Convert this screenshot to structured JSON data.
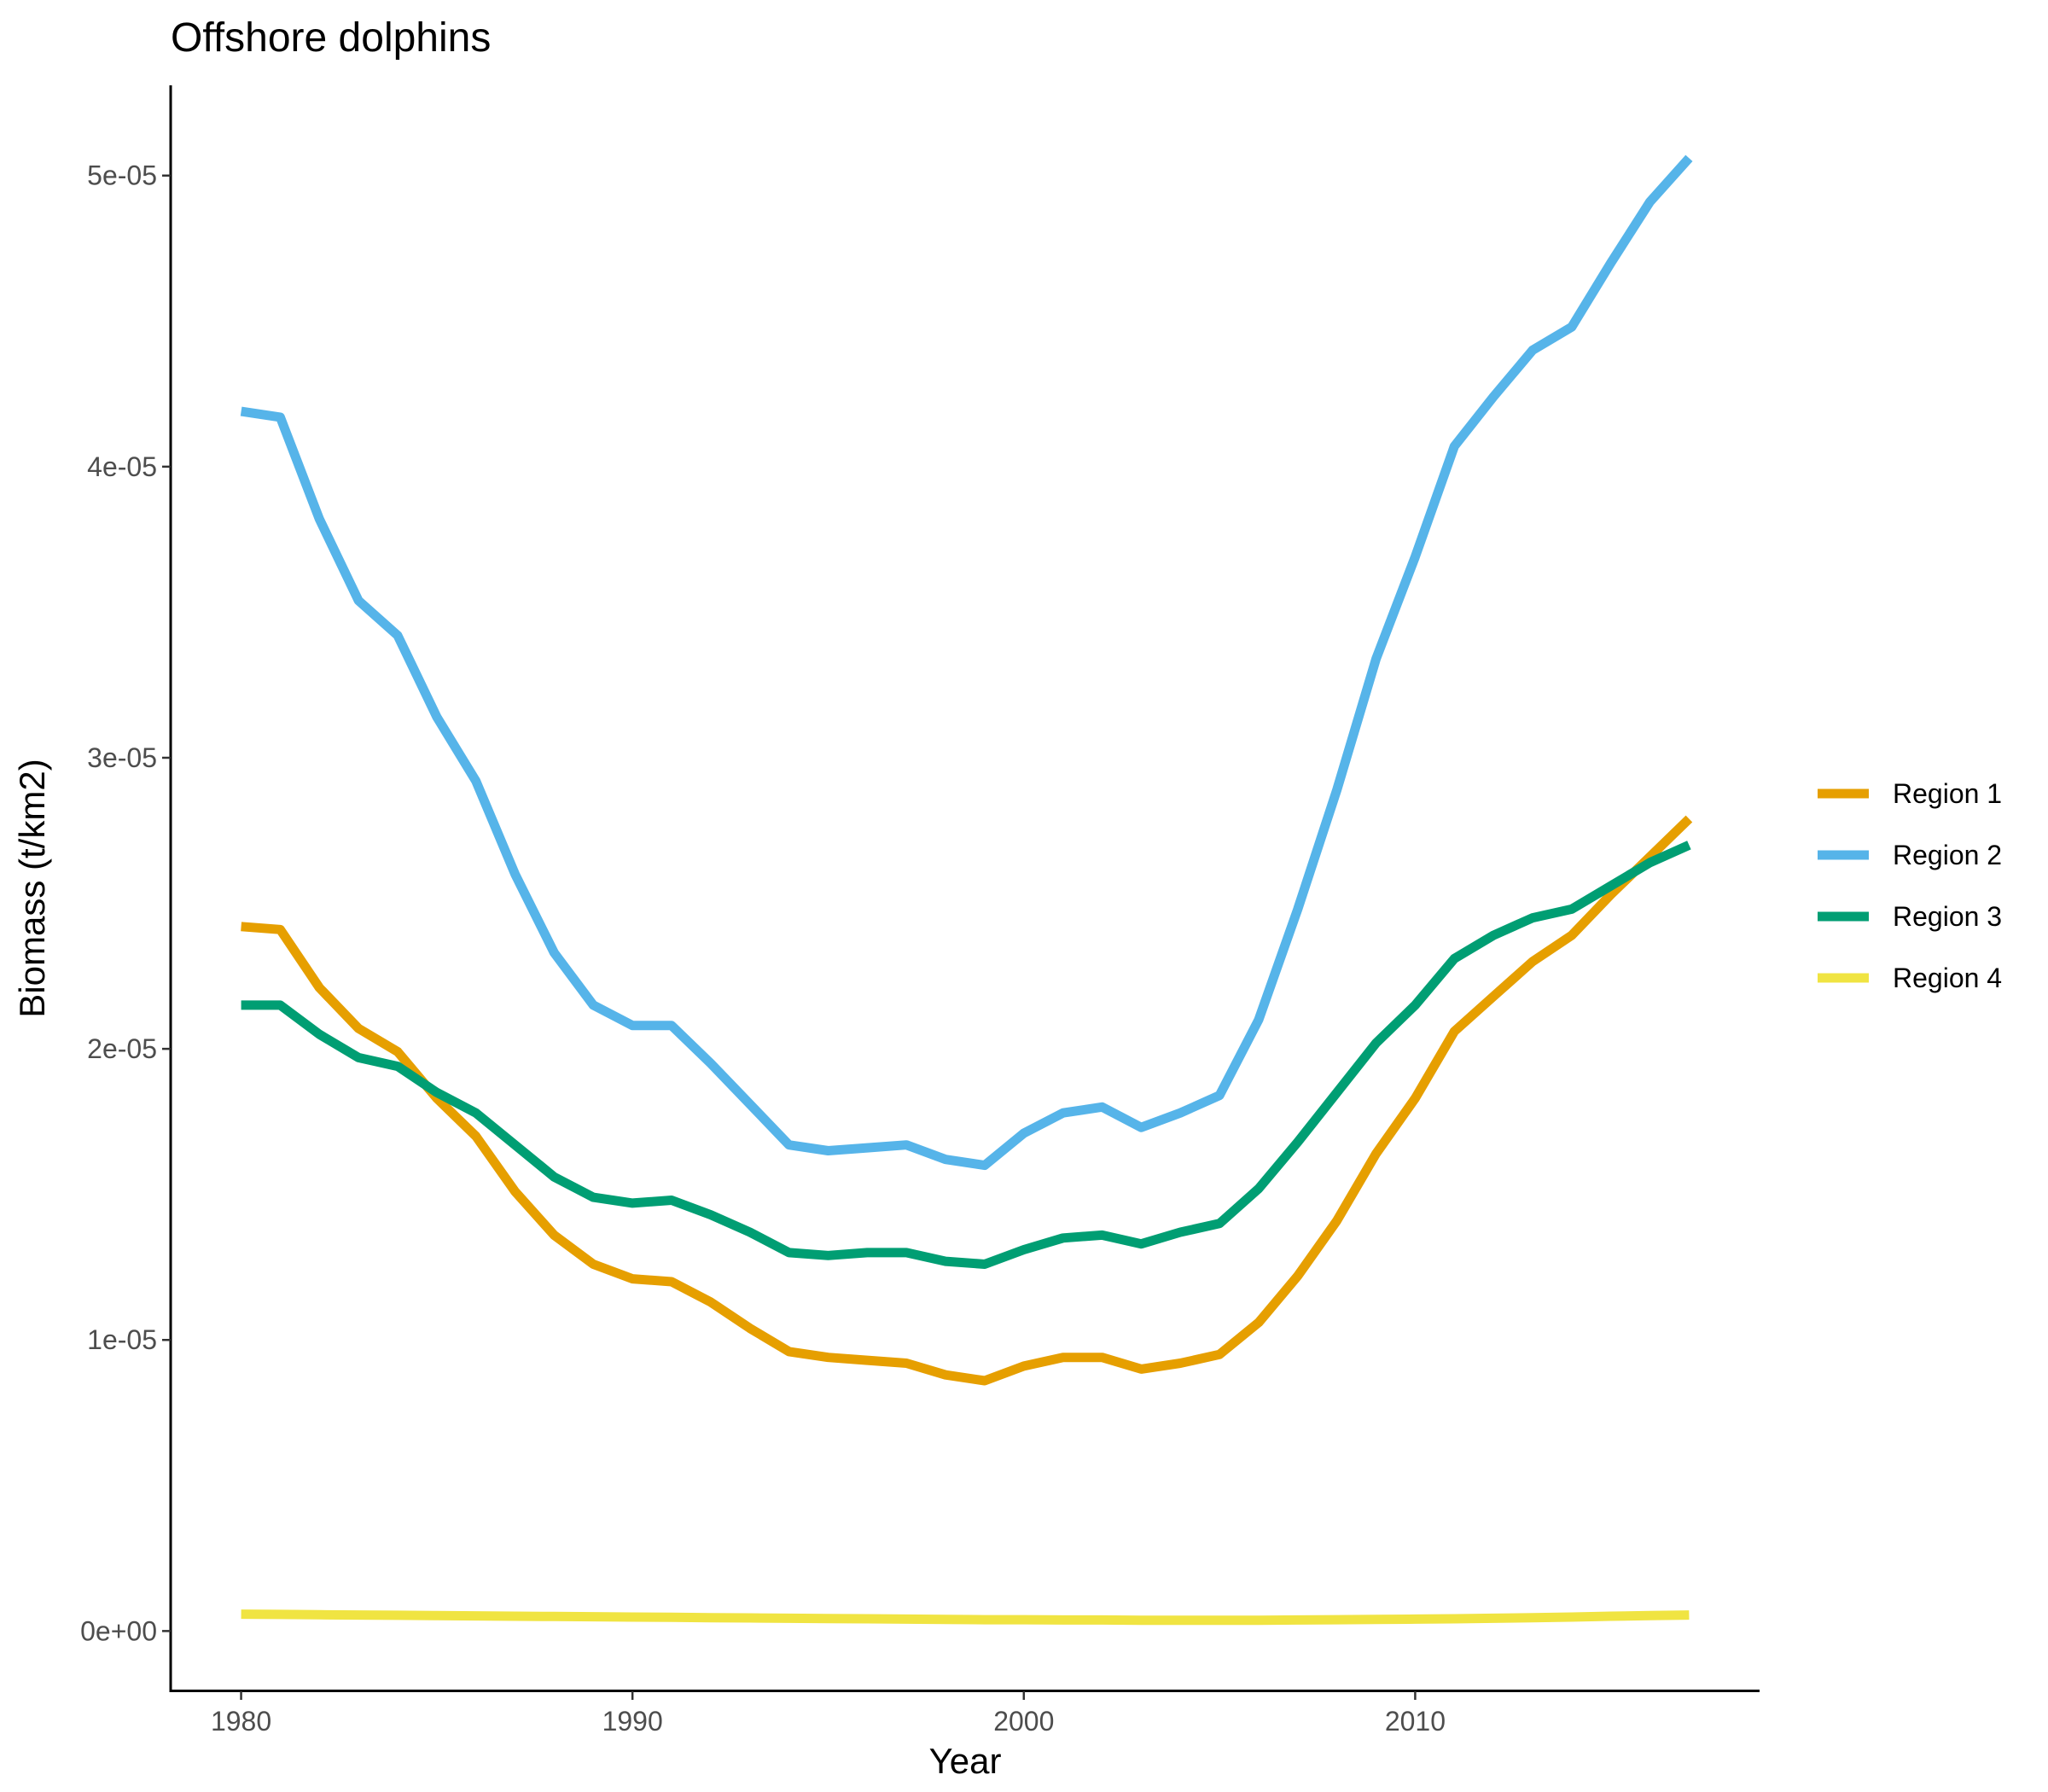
{
  "chart_data": {
    "type": "line",
    "title": "Offshore dolphins",
    "xlabel": "Year",
    "ylabel": "Biomass (t/km2)",
    "xlim": [
      1978.2,
      2018.8
    ],
    "ylim": [
      -2.1e-06,
      5.31e-05
    ],
    "x_ticks": [
      1980,
      1990,
      2000,
      2010
    ],
    "x_tick_labels": [
      "1980",
      "1990",
      "2000",
      "2010"
    ],
    "y_ticks": [
      0,
      1e-05,
      2e-05,
      3e-05,
      4e-05,
      5e-05
    ],
    "y_tick_labels": [
      "0e+00",
      "1e-05",
      "2e-05",
      "3e-05",
      "4e-05",
      "5e-05"
    ],
    "grid": false,
    "legend_position": "right",
    "x": [
      1980,
      1981,
      1982,
      1983,
      1984,
      1985,
      1986,
      1987,
      1988,
      1989,
      1990,
      1991,
      1992,
      1993,
      1994,
      1995,
      1996,
      1997,
      1998,
      1999,
      2000,
      2001,
      2002,
      2003,
      2004,
      2005,
      2006,
      2007,
      2008,
      2009,
      2010,
      2011,
      2012,
      2013,
      2014,
      2015,
      2016,
      2017
    ],
    "series": [
      {
        "name": "Region 1",
        "color": "#E69F00",
        "values": [
          2.42e-05,
          2.41e-05,
          2.21e-05,
          2.07e-05,
          1.99e-05,
          1.83e-05,
          1.7e-05,
          1.51e-05,
          1.36e-05,
          1.26e-05,
          1.21e-05,
          1.2e-05,
          1.13e-05,
          1.04e-05,
          9.6e-06,
          9.4e-06,
          9.3e-06,
          9.2e-06,
          8.8e-06,
          8.6e-06,
          9.1e-06,
          9.4e-06,
          9.4e-06,
          9e-06,
          9.2e-06,
          9.5e-06,
          1.06e-05,
          1.22e-05,
          1.41e-05,
          1.64e-05,
          1.83e-05,
          2.06e-05,
          2.18e-05,
          2.3e-05,
          2.39e-05,
          2.53e-05,
          2.66e-05,
          2.79e-05
        ]
      },
      {
        "name": "Region 2",
        "color": "#56B4E9",
        "values": [
          4.19e-05,
          4.17e-05,
          3.82e-05,
          3.54e-05,
          3.42e-05,
          3.14e-05,
          2.92e-05,
          2.6e-05,
          2.33e-05,
          2.15e-05,
          2.08e-05,
          2.08e-05,
          1.95e-05,
          1.81e-05,
          1.67e-05,
          1.65e-05,
          1.66e-05,
          1.67e-05,
          1.62e-05,
          1.6e-05,
          1.71e-05,
          1.78e-05,
          1.8e-05,
          1.73e-05,
          1.78e-05,
          1.84e-05,
          2.1e-05,
          2.48e-05,
          2.89e-05,
          3.34e-05,
          3.69e-05,
          4.07e-05,
          4.24e-05,
          4.4e-05,
          4.48e-05,
          4.7e-05,
          4.91e-05,
          5.06e-05
        ]
      },
      {
        "name": "Region 3",
        "color": "#009E73",
        "values": [
          2.15e-05,
          2.15e-05,
          2.05e-05,
          1.97e-05,
          1.94e-05,
          1.85e-05,
          1.78e-05,
          1.67e-05,
          1.56e-05,
          1.49e-05,
          1.47e-05,
          1.48e-05,
          1.43e-05,
          1.37e-05,
          1.3e-05,
          1.29e-05,
          1.3e-05,
          1.3e-05,
          1.27e-05,
          1.26e-05,
          1.31e-05,
          1.35e-05,
          1.36e-05,
          1.33e-05,
          1.37e-05,
          1.4e-05,
          1.52e-05,
          1.68e-05,
          1.85e-05,
          2.02e-05,
          2.15e-05,
          2.31e-05,
          2.39e-05,
          2.45e-05,
          2.48e-05,
          2.56e-05,
          2.64e-05,
          2.7e-05
        ]
      },
      {
        "name": "Region 4",
        "color": "#F0E442",
        "values": [
          5.8e-07,
          5.7e-07,
          5.6e-07,
          5.5e-07,
          5.4e-07,
          5.3e-07,
          5.2e-07,
          5.1e-07,
          5e-07,
          4.9e-07,
          4.8e-07,
          4.7e-07,
          4.6e-07,
          4.5e-07,
          4.4e-07,
          4.3e-07,
          4.2e-07,
          4.1e-07,
          4e-07,
          3.9e-07,
          3.9e-07,
          3.8e-07,
          3.8e-07,
          3.7e-07,
          3.7e-07,
          3.7e-07,
          3.7e-07,
          3.8e-07,
          3.9e-07,
          4e-07,
          4.1e-07,
          4.2e-07,
          4.4e-07,
          4.6e-07,
          4.8e-07,
          5.1e-07,
          5.3e-07,
          5.5e-07
        ]
      }
    ]
  }
}
